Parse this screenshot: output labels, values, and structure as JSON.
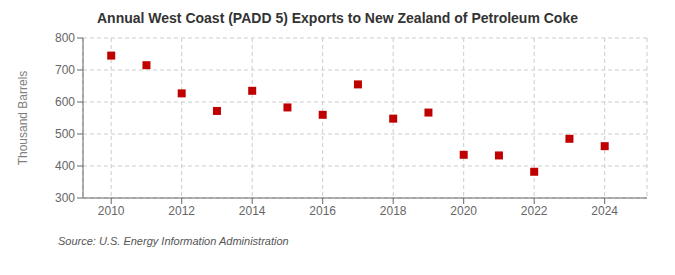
{
  "chart_data": {
    "type": "scatter",
    "title": "Annual West Coast (PADD 5) Exports to New Zealand of Petroleum Coke",
    "ylabel": "Thousand Barrels",
    "annotations": [
      "Source: U.S. Energy Information Administration"
    ],
    "x": [
      2010,
      2011,
      2012,
      2013,
      2014,
      2015,
      2016,
      2017,
      2018,
      2019,
      2020,
      2021,
      2022,
      2023,
      2024
    ],
    "values": [
      745,
      715,
      627,
      572,
      635,
      583,
      560,
      655,
      548,
      567,
      435,
      433,
      382,
      485,
      462
    ],
    "color": "#C00000",
    "marker": "square",
    "xlim": [
      2009.2,
      2025.2
    ],
    "xticks": [
      2010,
      2012,
      2014,
      2016,
      2018,
      2020,
      2022,
      2024
    ],
    "ylim": [
      300,
      800
    ],
    "yticks": [
      300,
      400,
      500,
      600,
      700,
      800
    ],
    "grid": true
  }
}
